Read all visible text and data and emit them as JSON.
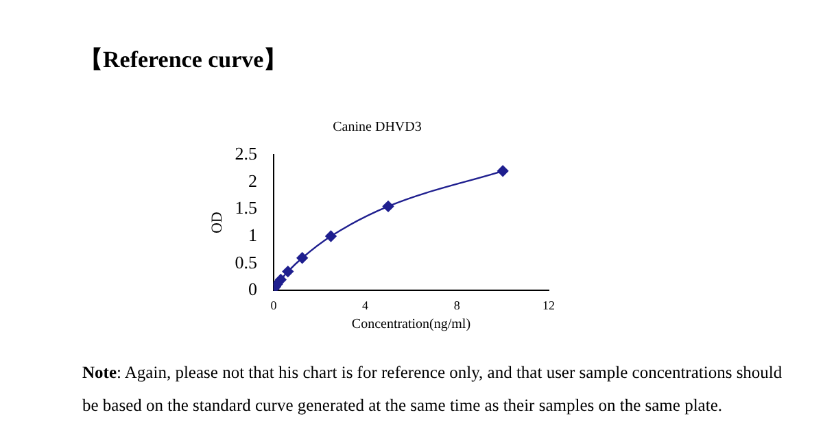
{
  "chart_data": {
    "type": "line",
    "title": "【Reference curve】",
    "subtitle": "Canine DHVD3",
    "xlabel": "Concentration(ng/ml)",
    "ylabel": "OD",
    "x": [
      0,
      0.078,
      0.156,
      0.3125,
      0.625,
      1.25,
      2.5,
      5,
      10
    ],
    "series": [
      {
        "color": "#1f1f8f",
        "values": [
          0.03,
          0.07,
          0.12,
          0.2,
          0.35,
          0.6,
          1.0,
          1.55,
          2.2
        ]
      }
    ],
    "xlim": [
      0,
      12
    ],
    "xticks": [
      0,
      4,
      8,
      12
    ],
    "ylim": [
      0,
      2.5
    ],
    "yticks": [
      0,
      0.5,
      1,
      1.5,
      2,
      2.5
    ],
    "marker": "diamond",
    "line_style": "solid",
    "grid": false,
    "legend": false,
    "annotations": [
      "Note: Again, please not that his chart is for reference only, and that user sample concentrations should be based on the standard curve generated at the same time as their samples on the same plate."
    ]
  }
}
